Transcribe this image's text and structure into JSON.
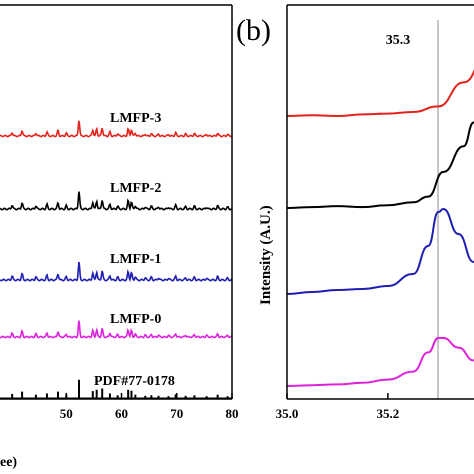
{
  "colors": {
    "LMFP-3": "#e3241c",
    "LMFP-2": "#000000",
    "LMFP-1": "#1f1fb4",
    "LMFP-0": "#dd22dd",
    "PDF#77-0178": "#000000",
    "reference_line": "#8c8c8c"
  },
  "chart_data": [
    {
      "type": "line",
      "panel_label": "",
      "xlabel": "ee)",
      "ylabel": "",
      "xlim": [
        38,
        80
      ],
      "x_ticks": [
        "50",
        "60",
        "70",
        "80"
      ],
      "x_tick_values": [
        50,
        60,
        70,
        80
      ],
      "series": [
        {
          "name": "LMFP-3",
          "offset": 4
        },
        {
          "name": "LMFP-2",
          "offset": 3
        },
        {
          "name": "LMFP-1",
          "offset": 2
        },
        {
          "name": "LMFP-0",
          "offset": 1
        },
        {
          "name": "PDF#77-0178",
          "offset": 0
        }
      ],
      "peaks": [
        {
          "x": 40.2,
          "h": 0.22
        },
        {
          "x": 42.0,
          "h": 0.35
        },
        {
          "x": 44.5,
          "h": 0.18
        },
        {
          "x": 46.5,
          "h": 0.25
        },
        {
          "x": 48.5,
          "h": 0.35
        },
        {
          "x": 50.0,
          "h": 0.18
        },
        {
          "x": 52.3,
          "h": 1.0
        },
        {
          "x": 54.8,
          "h": 0.38
        },
        {
          "x": 55.5,
          "h": 0.45
        },
        {
          "x": 56.5,
          "h": 0.52
        },
        {
          "x": 57.9,
          "h": 0.25
        },
        {
          "x": 59.3,
          "h": 0.15
        },
        {
          "x": 61.2,
          "h": 0.45
        },
        {
          "x": 61.8,
          "h": 0.4
        },
        {
          "x": 62.5,
          "h": 0.18
        },
        {
          "x": 64.3,
          "h": 0.12
        },
        {
          "x": 65.4,
          "h": 0.15
        },
        {
          "x": 66.7,
          "h": 0.12
        },
        {
          "x": 68.5,
          "h": 0.1
        },
        {
          "x": 69.8,
          "h": 0.2
        },
        {
          "x": 71.6,
          "h": 0.12
        },
        {
          "x": 73.2,
          "h": 0.15
        },
        {
          "x": 75.4,
          "h": 0.1
        },
        {
          "x": 77.4,
          "h": 0.18
        },
        {
          "x": 79.2,
          "h": 0.1
        }
      ]
    },
    {
      "type": "line",
      "panel_label": "(b)",
      "xlabel": "",
      "ylabel": "Intensity (A.U.)",
      "xlim": [
        35.0,
        35.45
      ],
      "x_ticks": [
        "35.0",
        "35.2"
      ],
      "x_tick_values": [
        35.0,
        35.2
      ],
      "reference_line": {
        "x": 35.3,
        "label": "35.3"
      },
      "series": [
        {
          "name": "LMFP-3",
          "points": [
            [
              35.0,
              0.0
            ],
            [
              35.05,
              0.01
            ],
            [
              35.1,
              0.0
            ],
            [
              35.15,
              0.02
            ],
            [
              35.2,
              0.03
            ],
            [
              35.25,
              0.05
            ],
            [
              35.3,
              0.12
            ],
            [
              35.35,
              0.42
            ],
            [
              35.4,
              0.82
            ],
            [
              35.42,
              0.95
            ],
            [
              35.45,
              1.0
            ]
          ]
        },
        {
          "name": "LMFP-2",
          "points": [
            [
              35.0,
              0.0
            ],
            [
              35.05,
              0.01
            ],
            [
              35.1,
              0.02
            ],
            [
              35.15,
              0.01
            ],
            [
              35.2,
              0.03
            ],
            [
              35.25,
              0.06
            ],
            [
              35.28,
              0.12
            ],
            [
              35.31,
              0.38
            ],
            [
              35.35,
              0.65
            ],
            [
              35.37,
              0.9
            ],
            [
              35.39,
              0.72
            ],
            [
              35.42,
              0.6
            ],
            [
              35.45,
              0.5
            ]
          ]
        },
        {
          "name": "LMFP-1",
          "points": [
            [
              35.0,
              0.0
            ],
            [
              35.05,
              0.02
            ],
            [
              35.1,
              0.04
            ],
            [
              35.15,
              0.05
            ],
            [
              35.2,
              0.08
            ],
            [
              35.25,
              0.2
            ],
            [
              35.28,
              0.48
            ],
            [
              35.3,
              0.82
            ],
            [
              35.31,
              0.85
            ],
            [
              35.34,
              0.6
            ],
            [
              35.37,
              0.32
            ],
            [
              35.4,
              0.3
            ],
            [
              35.45,
              0.3
            ]
          ]
        },
        {
          "name": "LMFP-0",
          "points": [
            [
              35.0,
              0.0
            ],
            [
              35.05,
              0.01
            ],
            [
              35.1,
              0.02
            ],
            [
              35.15,
              0.04
            ],
            [
              35.2,
              0.08
            ],
            [
              35.25,
              0.18
            ],
            [
              35.28,
              0.42
            ],
            [
              35.3,
              0.6
            ],
            [
              35.31,
              0.6
            ],
            [
              35.34,
              0.48
            ],
            [
              35.37,
              0.32
            ],
            [
              35.4,
              0.2
            ],
            [
              35.45,
              0.1
            ]
          ]
        }
      ]
    }
  ]
}
